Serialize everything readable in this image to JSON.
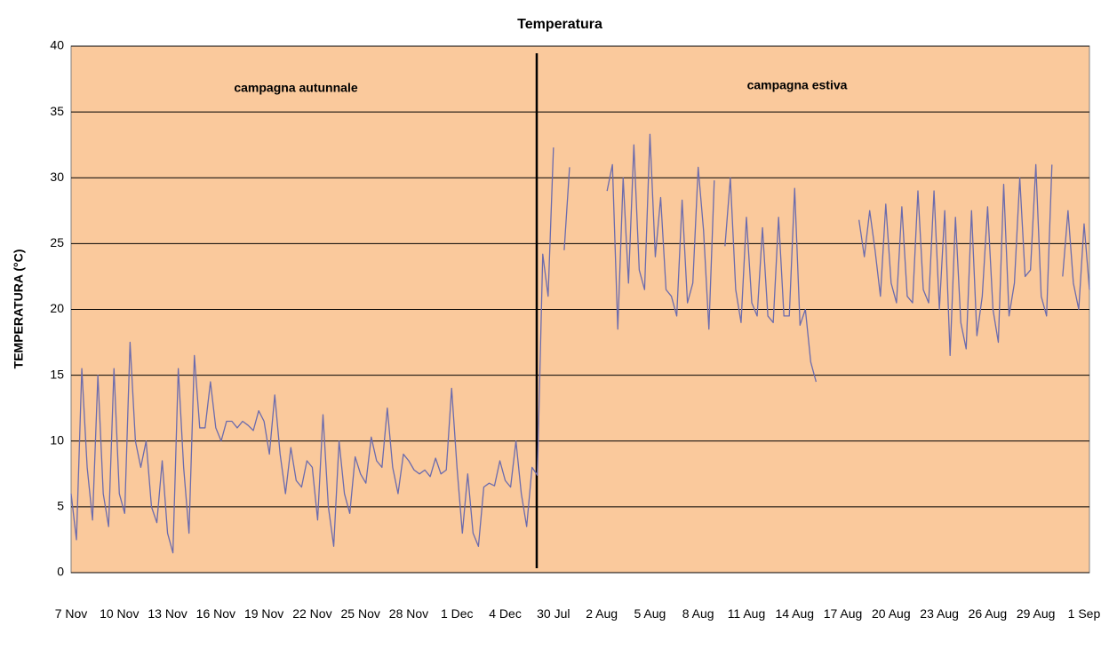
{
  "chart_data": {
    "type": "line",
    "title": "Temperatura",
    "ylabel": "TEMPERATURA (°C)",
    "annotations": [
      "campagna autunnale",
      "campagna estiva"
    ],
    "ylim": [
      0,
      40
    ],
    "yticks": [
      0,
      5,
      10,
      15,
      20,
      25,
      30,
      35,
      40
    ],
    "grid": true,
    "categories": [
      "7 Nov",
      null,
      null,
      null,
      null,
      null,
      null,
      null,
      null,
      "10 Nov",
      null,
      null,
      null,
      null,
      null,
      null,
      null,
      null,
      "13 Nov",
      null,
      null,
      null,
      null,
      null,
      null,
      null,
      null,
      "16 Nov",
      null,
      null,
      null,
      null,
      null,
      null,
      null,
      null,
      "19 Nov",
      null,
      null,
      null,
      null,
      null,
      null,
      null,
      null,
      "22 Nov",
      null,
      null,
      null,
      null,
      null,
      null,
      null,
      null,
      "25 Nov",
      null,
      null,
      null,
      null,
      null,
      null,
      null,
      null,
      "28 Nov",
      null,
      null,
      null,
      null,
      null,
      null,
      null,
      null,
      "1 Dec",
      null,
      null,
      null,
      null,
      null,
      null,
      null,
      null,
      "4 Dec",
      null,
      null,
      null,
      null,
      null,
      null,
      null,
      null,
      "30 Jul",
      null,
      null,
      null,
      null,
      null,
      null,
      null,
      null,
      "2 Aug",
      null,
      null,
      null,
      null,
      null,
      null,
      null,
      null,
      "5 Aug",
      null,
      null,
      null,
      null,
      null,
      null,
      null,
      null,
      "8 Aug",
      null,
      null,
      null,
      null,
      null,
      null,
      null,
      null,
      "11 Aug",
      null,
      null,
      null,
      null,
      null,
      null,
      null,
      null,
      "14 Aug",
      null,
      null,
      null,
      null,
      null,
      null,
      null,
      null,
      "17 Aug",
      null,
      null,
      null,
      null,
      null,
      null,
      null,
      null,
      "20 Aug",
      null,
      null,
      null,
      null,
      null,
      null,
      null,
      null,
      "23 Aug",
      null,
      null,
      null,
      null,
      null,
      null,
      null,
      null,
      "26 Aug",
      null,
      null,
      null,
      null,
      null,
      null,
      null,
      null,
      "29 Aug",
      null,
      null,
      null,
      null,
      null,
      null,
      null,
      null,
      "1 Sep",
      null
    ],
    "series": [
      {
        "name": "Temperatura",
        "color": "#6b6bad",
        "values": [
          6,
          2.5,
          15.5,
          8,
          4,
          15,
          6,
          3.5,
          15.5,
          6,
          4.5,
          17.5,
          10,
          8,
          10,
          5,
          3.8,
          8.5,
          3,
          1.5,
          15.5,
          8,
          3,
          16.5,
          11,
          11,
          14.5,
          11,
          10,
          11.5,
          11.5,
          11,
          11.5,
          11.2,
          10.8,
          12.3,
          11.5,
          9,
          13.5,
          9,
          6,
          9.5,
          7,
          6.5,
          8.5,
          8,
          4,
          12,
          5,
          2,
          10,
          6,
          4.5,
          8.8,
          7.5,
          6.8,
          10.3,
          8.5,
          8,
          12.5,
          8,
          6,
          9,
          8.5,
          7.8,
          7.5,
          7.8,
          7.3,
          8.7,
          7.5,
          7.8,
          14,
          8,
          3,
          7.5,
          3,
          2,
          6.5,
          6.8,
          6.6,
          8.5,
          7,
          6.5,
          10,
          6,
          3.5,
          8,
          7.4,
          24.2,
          21,
          32.3,
          null,
          24.5,
          30.8,
          null,
          null,
          null,
          null,
          null,
          null,
          29,
          31,
          18.5,
          30,
          22,
          32.5,
          23,
          21.5,
          33.3,
          24,
          28.5,
          21.5,
          21,
          19.5,
          28.3,
          20.5,
          22,
          30.8,
          26,
          18.5,
          29.8,
          null,
          24.8,
          30,
          21.5,
          19,
          27,
          20.5,
          19.5,
          26.2,
          19.5,
          19,
          27,
          19.5,
          19.5,
          29.2,
          18.8,
          20,
          16,
          14.5,
          null,
          null,
          null,
          null,
          null,
          null,
          null,
          26.8,
          24,
          27.5,
          24.5,
          21,
          28,
          22,
          20.5,
          27.8,
          21,
          20.5,
          29,
          21.5,
          20.5,
          29,
          20,
          27.5,
          16.5,
          27,
          19,
          17,
          27.5,
          18,
          21,
          27.8,
          20,
          17.5,
          29.5,
          19.5,
          22,
          30,
          22.5,
          23,
          31,
          21,
          19.5,
          31,
          null,
          22.5,
          27.5,
          22,
          20,
          26.5,
          21.5
        ]
      }
    ]
  }
}
